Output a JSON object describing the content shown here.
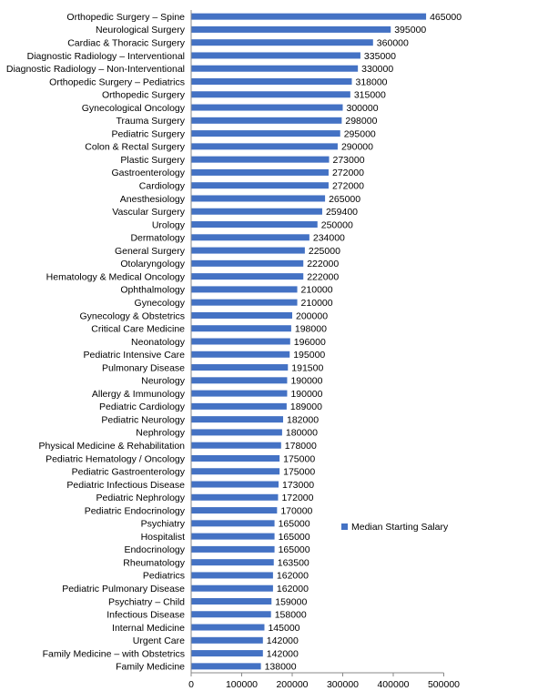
{
  "chart_data": {
    "type": "bar",
    "orientation": "horizontal",
    "categories": [
      "Orthopedic Surgery – Spine",
      "Neurological Surgery",
      "Cardiac & Thoracic Surgery",
      "Diagnostic Radiology – Interventional",
      "Diagnostic Radiology – Non-Interventional",
      "Orthopedic Surgery – Pediatrics",
      "Orthopedic Surgery",
      "Gynecological Oncology",
      "Trauma Surgery",
      "Pediatric Surgery",
      "Colon & Rectal Surgery",
      "Plastic  Surgery",
      "Gastroenterology",
      "Cardiology",
      "Anesthesiology",
      "Vascular Surgery",
      "Urology",
      "Dermatology",
      "General Surgery",
      "Otolaryngology",
      "Hematology & Medical Oncology",
      "Ophthalmology",
      "Gynecology",
      "Gynecology & Obstetrics",
      "Critical Care Medicine",
      "Neonatology",
      "Pediatric Intensive Care",
      "Pulmonary Disease",
      "Neurology",
      "Allergy & Immunology",
      "Pediatric Cardiology",
      "Pediatric Neurology",
      "Nephrology",
      "Physical Medicine & Rehabilitation",
      "Pediatric Hematology  / Oncology",
      "Pediatric Gastroenterology",
      "Pediatric Infectious Disease",
      "Pediatric Nephrology",
      "Pediatric Endocrinology",
      "Psychiatry",
      "Hospitalist",
      "Endocrinology",
      "Rheumatology",
      "Pediatrics",
      "Pediatric Pulmonary Disease",
      "Psychiatry – Child",
      "Infectious Disease",
      "Internal Medicine",
      "Urgent Care",
      "Family Medicine – with  Obstetrics",
      "Family Medicine"
    ],
    "series": [
      {
        "name": "Median Starting Salary",
        "color": "#4472c4",
        "values": [
          465000,
          395000,
          360000,
          335000,
          330000,
          318000,
          315000,
          300000,
          298000,
          295000,
          290000,
          273000,
          272000,
          272000,
          265000,
          259400,
          250000,
          234000,
          225000,
          222000,
          222000,
          210000,
          210000,
          200000,
          198000,
          196000,
          195000,
          191500,
          190000,
          190000,
          189000,
          182000,
          180000,
          178000,
          175000,
          175000,
          173000,
          172000,
          170000,
          165000,
          165000,
          165000,
          163500,
          162000,
          162000,
          159000,
          158000,
          145000,
          142000,
          142000,
          138000
        ]
      }
    ],
    "xlim": [
      0,
      500000
    ],
    "xticks": [
      "0",
      "100000",
      "200000",
      "300000",
      "400000",
      "500000"
    ],
    "grid": false,
    "legend_position": "right"
  }
}
